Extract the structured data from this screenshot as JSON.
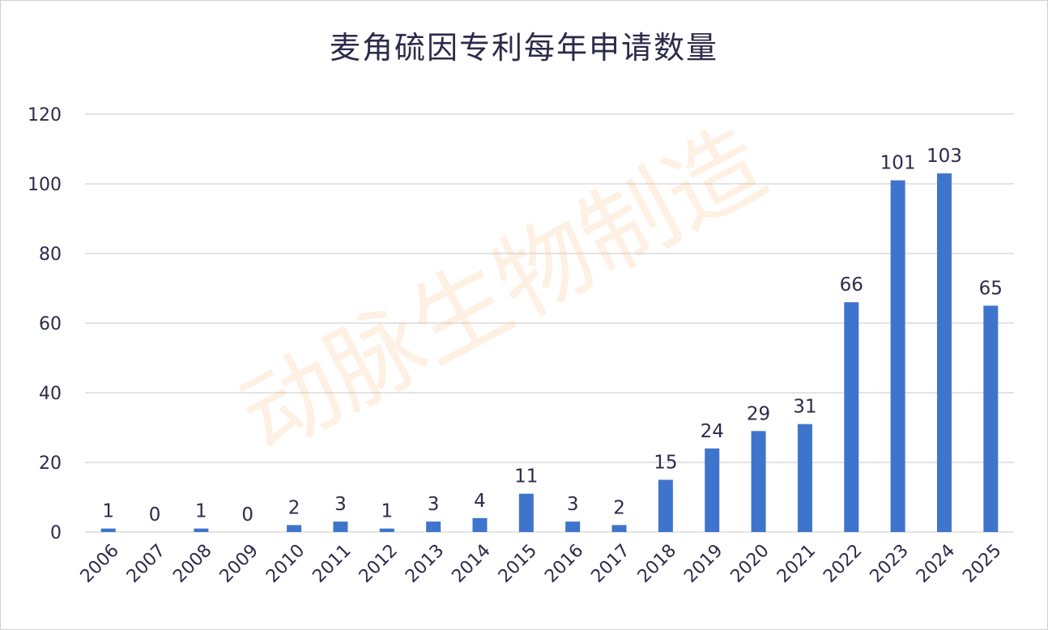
{
  "chart_data": {
    "type": "bar",
    "title": "麦角硫因专利每年申请数量",
    "xlabel": "",
    "ylabel": "",
    "categories": [
      "2006",
      "2007",
      "2008",
      "2009",
      "2010",
      "2011",
      "2012",
      "2013",
      "2014",
      "2015",
      "2016",
      "2017",
      "2018",
      "2019",
      "2020",
      "2021",
      "2022",
      "2023",
      "2024",
      "2025"
    ],
    "values": [
      1,
      0,
      1,
      0,
      2,
      3,
      1,
      3,
      4,
      11,
      3,
      2,
      15,
      24,
      29,
      31,
      66,
      101,
      103,
      65
    ],
    "ylim": [
      0,
      120
    ],
    "yticks": [
      0,
      20,
      40,
      60,
      80,
      100,
      120
    ],
    "grid": true,
    "data_labels": true,
    "bar_color": "#3f74cc",
    "watermark": "动脉生物制造"
  }
}
